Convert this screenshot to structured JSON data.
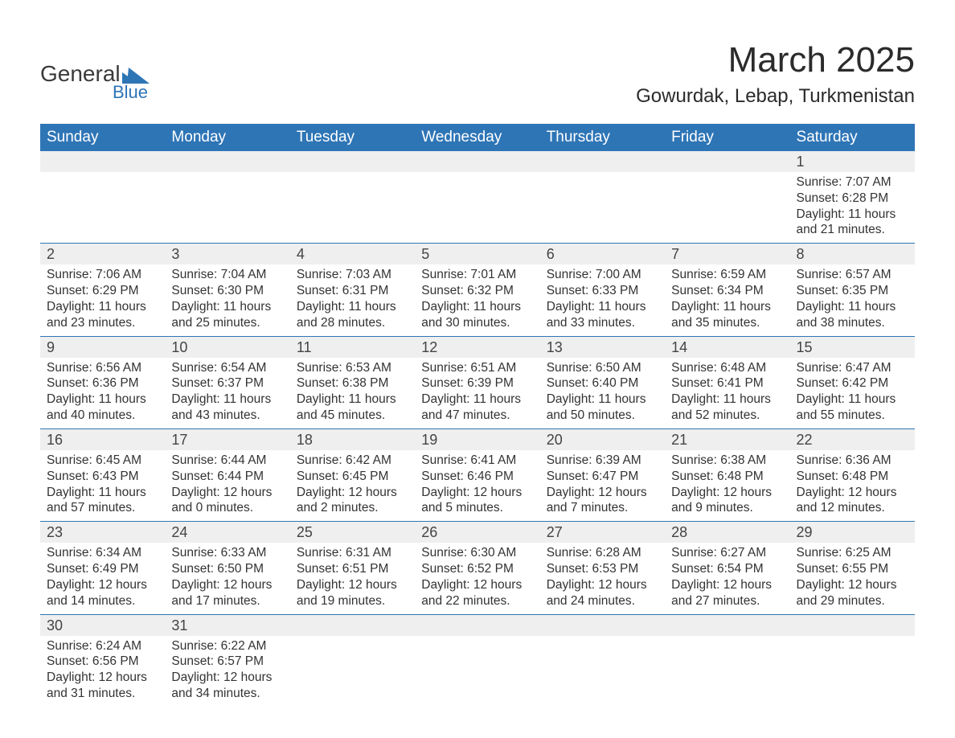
{
  "logo": {
    "main": "General",
    "sub": "Blue",
    "accent_color": "#2e75b6"
  },
  "title": {
    "month": "March 2025",
    "location": "Gowurdak, Lebap, Turkmenistan"
  },
  "calendar": {
    "header_bg": "#2e75b6",
    "header_fg": "#ffffff",
    "daynum_bg": "#efefef",
    "rule_color": "#2e75b6",
    "text_color": "#333333",
    "font_family": "Arial",
    "day_headers": [
      "Sunday",
      "Monday",
      "Tuesday",
      "Wednesday",
      "Thursday",
      "Friday",
      "Saturday"
    ],
    "weeks": [
      [
        null,
        null,
        null,
        null,
        null,
        null,
        {
          "n": "1",
          "sr": "7:07 AM",
          "ss": "6:28 PM",
          "dl": "11 hours and 21 minutes."
        }
      ],
      [
        {
          "n": "2",
          "sr": "7:06 AM",
          "ss": "6:29 PM",
          "dl": "11 hours and 23 minutes."
        },
        {
          "n": "3",
          "sr": "7:04 AM",
          "ss": "6:30 PM",
          "dl": "11 hours and 25 minutes."
        },
        {
          "n": "4",
          "sr": "7:03 AM",
          "ss": "6:31 PM",
          "dl": "11 hours and 28 minutes."
        },
        {
          "n": "5",
          "sr": "7:01 AM",
          "ss": "6:32 PM",
          "dl": "11 hours and 30 minutes."
        },
        {
          "n": "6",
          "sr": "7:00 AM",
          "ss": "6:33 PM",
          "dl": "11 hours and 33 minutes."
        },
        {
          "n": "7",
          "sr": "6:59 AM",
          "ss": "6:34 PM",
          "dl": "11 hours and 35 minutes."
        },
        {
          "n": "8",
          "sr": "6:57 AM",
          "ss": "6:35 PM",
          "dl": "11 hours and 38 minutes."
        }
      ],
      [
        {
          "n": "9",
          "sr": "6:56 AM",
          "ss": "6:36 PM",
          "dl": "11 hours and 40 minutes."
        },
        {
          "n": "10",
          "sr": "6:54 AM",
          "ss": "6:37 PM",
          "dl": "11 hours and 43 minutes."
        },
        {
          "n": "11",
          "sr": "6:53 AM",
          "ss": "6:38 PM",
          "dl": "11 hours and 45 minutes."
        },
        {
          "n": "12",
          "sr": "6:51 AM",
          "ss": "6:39 PM",
          "dl": "11 hours and 47 minutes."
        },
        {
          "n": "13",
          "sr": "6:50 AM",
          "ss": "6:40 PM",
          "dl": "11 hours and 50 minutes."
        },
        {
          "n": "14",
          "sr": "6:48 AM",
          "ss": "6:41 PM",
          "dl": "11 hours and 52 minutes."
        },
        {
          "n": "15",
          "sr": "6:47 AM",
          "ss": "6:42 PM",
          "dl": "11 hours and 55 minutes."
        }
      ],
      [
        {
          "n": "16",
          "sr": "6:45 AM",
          "ss": "6:43 PM",
          "dl": "11 hours and 57 minutes."
        },
        {
          "n": "17",
          "sr": "6:44 AM",
          "ss": "6:44 PM",
          "dl": "12 hours and 0 minutes."
        },
        {
          "n": "18",
          "sr": "6:42 AM",
          "ss": "6:45 PM",
          "dl": "12 hours and 2 minutes."
        },
        {
          "n": "19",
          "sr": "6:41 AM",
          "ss": "6:46 PM",
          "dl": "12 hours and 5 minutes."
        },
        {
          "n": "20",
          "sr": "6:39 AM",
          "ss": "6:47 PM",
          "dl": "12 hours and 7 minutes."
        },
        {
          "n": "21",
          "sr": "6:38 AM",
          "ss": "6:48 PM",
          "dl": "12 hours and 9 minutes."
        },
        {
          "n": "22",
          "sr": "6:36 AM",
          "ss": "6:48 PM",
          "dl": "12 hours and 12 minutes."
        }
      ],
      [
        {
          "n": "23",
          "sr": "6:34 AM",
          "ss": "6:49 PM",
          "dl": "12 hours and 14 minutes."
        },
        {
          "n": "24",
          "sr": "6:33 AM",
          "ss": "6:50 PM",
          "dl": "12 hours and 17 minutes."
        },
        {
          "n": "25",
          "sr": "6:31 AM",
          "ss": "6:51 PM",
          "dl": "12 hours and 19 minutes."
        },
        {
          "n": "26",
          "sr": "6:30 AM",
          "ss": "6:52 PM",
          "dl": "12 hours and 22 minutes."
        },
        {
          "n": "27",
          "sr": "6:28 AM",
          "ss": "6:53 PM",
          "dl": "12 hours and 24 minutes."
        },
        {
          "n": "28",
          "sr": "6:27 AM",
          "ss": "6:54 PM",
          "dl": "12 hours and 27 minutes."
        },
        {
          "n": "29",
          "sr": "6:25 AM",
          "ss": "6:55 PM",
          "dl": "12 hours and 29 minutes."
        }
      ],
      [
        {
          "n": "30",
          "sr": "6:24 AM",
          "ss": "6:56 PM",
          "dl": "12 hours and 31 minutes."
        },
        {
          "n": "31",
          "sr": "6:22 AM",
          "ss": "6:57 PM",
          "dl": "12 hours and 34 minutes."
        },
        null,
        null,
        null,
        null,
        null
      ]
    ]
  }
}
